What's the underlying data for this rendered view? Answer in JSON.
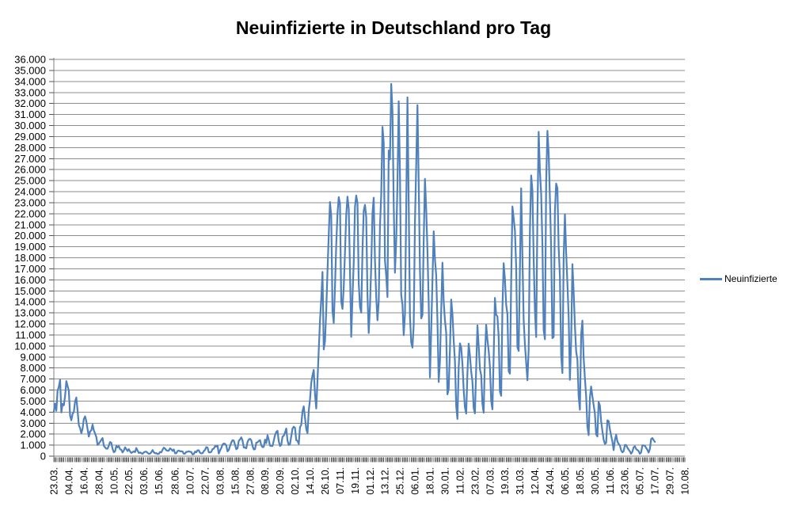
{
  "header": {
    "title": "Neuinfizierte in Deutschland pro Tag"
  },
  "legend": {
    "label": "Neuinfizierte",
    "marker_color": "#4F81BD"
  },
  "colors": {
    "series_blue": "#4F81BD",
    "gridline": "#8C8C8C",
    "axis": "#7F7F7F",
    "tick": "#555555",
    "text": "#000000",
    "background": "#FFFFFF"
  },
  "chart_data": {
    "type": "line",
    "title": "Neuinfizierte in Deutschland pro Tag",
    "grid": {
      "horizontal": true,
      "vertical": false
    },
    "legend_position": "right",
    "y_axis": {
      "min": 0,
      "max": 36000,
      "step": 1000,
      "tick_labels": [
        "0",
        "1.000",
        "2.000",
        "3.000",
        "4.000",
        "5.000",
        "6.000",
        "7.000",
        "8.000",
        "9.000",
        "10.000",
        "11.000",
        "12.000",
        "13.000",
        "14.000",
        "15.000",
        "16.000",
        "17.000",
        "18.000",
        "19.000",
        "20.000",
        "21.000",
        "22.000",
        "23.000",
        "24.000",
        "25.000",
        "26.000",
        "27.000",
        "28.000",
        "29.000",
        "30.000",
        "31.000",
        "32.000",
        "33.000",
        "34.000",
        "35.000",
        "36.000"
      ]
    },
    "x_axis": {
      "total_categories": 506,
      "tick_labels": [
        "23.03.",
        "04.04.",
        "16.04.",
        "28.04.",
        "10.05.",
        "22.05.",
        "03.06.",
        "15.06.",
        "28.06.",
        "10.07.",
        "22.07.",
        "03.08.",
        "15.08.",
        "27.08.",
        "08.09.",
        "20.09.",
        "02.10.",
        "14.10.",
        "26.10.",
        "07.11.",
        "19.11.",
        "01.12.",
        "13.12.",
        "25.12.",
        "06.01.",
        "18.01.",
        "30.01.",
        "11.02.",
        "23.02.",
        "07.03.",
        "19.03.",
        "31.03.",
        "12.04.",
        "24.04.",
        "06.05.",
        "18.05.",
        "30.05.",
        "11.06.",
        "23.06.",
        "05.07.",
        "17.07.",
        "29.07.",
        "10.08."
      ],
      "tick_indices": [
        0,
        12,
        24,
        36,
        48,
        60,
        72,
        84,
        97,
        109,
        121,
        133,
        145,
        157,
        169,
        181,
        193,
        205,
        217,
        229,
        241,
        253,
        265,
        277,
        289,
        301,
        313,
        325,
        337,
        349,
        361,
        373,
        385,
        397,
        409,
        421,
        433,
        445,
        457,
        469,
        481,
        493,
        505
      ]
    },
    "series": [
      {
        "name": "Neuinfizierte",
        "color": "#4F81BD",
        "values": [
          4062,
          4764,
          4118,
          5940,
          6294,
          6922,
          3965,
          4751,
          4615,
          5453,
          6813,
          6365,
          5936,
          3677,
          3252,
          3834,
          4003,
          4974,
          5323,
          4133,
          2821,
          2537,
          2082,
          2486,
          3380,
          3609,
          3148,
          2458,
          1775,
          2237,
          2352,
          2866,
          2337,
          2055,
          1737,
          1018,
          1144,
          1304,
          1478,
          1639,
          945,
          793,
          679,
          685,
          947,
          1284,
          1209,
          667,
          357,
          432,
          933,
          798,
          913,
          620,
          583,
          342,
          513,
          797,
          639,
          460,
          638,
          431,
          289,
          361,
          432,
          362,
          741,
          507,
          286,
          333,
          270,
          213,
          342,
          394,
          407,
          301,
          214,
          229,
          350,
          555,
          348,
          258,
          276,
          192,
          210,
          378,
          345,
          580,
          770,
          687,
          537,
          479,
          503,
          712,
          630,
          477,
          606,
          256,
          262,
          466,
          503,
          446,
          440,
          422,
          219,
          231,
          390,
          397,
          442,
          395,
          378,
          159,
          190,
          412,
          351,
          534,
          529,
          305,
          249,
          264,
          454,
          569,
          815,
          781,
          351,
          340,
          390,
          633,
          684,
          902,
          870,
          955,
          240,
          509,
          741,
          1045,
          1147,
          1122,
          966,
          436,
          561,
          919,
          1226,
          1445,
          1415,
          1034,
          625,
          713,
          1390,
          1510,
          1707,
          1427,
          782,
          785,
          711,
          1278,
          1507,
          1571,
          1446,
          924,
          610,
          633,
          1218,
          1256,
          1375,
          1453,
          988,
          814,
          839,
          1499,
          1176,
          1892,
          1484,
          948,
          920,
          927,
          1407,
          1901,
          2194,
          2297,
          1345,
          922,
          1021,
          1769,
          1850,
          2143,
          2507,
          1411,
          1011,
          1101,
          1798,
          2503,
          2673,
          2563,
          1449,
          1382,
          1104,
          2639,
          2828,
          4058,
          4516,
          3483,
          2467,
          2089,
          4122,
          5132,
          6638,
          7334,
          7830,
          5587,
          4325,
          6868,
          9595,
          12287,
          14242,
          16714,
          9685,
          10409,
          13217,
          16774,
          20081,
          23059,
          21790,
          13177,
          12097,
          15352,
          19214,
          21990,
          23506,
          22899,
          14017,
          13363,
          15332,
          18487,
          21866,
          23542,
          22461,
          16947,
          10824,
          14419,
          17561,
          22609,
          23648,
          22964,
          15741,
          13554,
          13021,
          18633,
          22268,
          22806,
          21695,
          14611,
          11169,
          13604,
          17270,
          22046,
          23449,
          17767,
          14455,
          12332,
          14054,
          20815,
          23679,
          29875,
          28438,
          17765,
          16362,
          14432,
          27728,
          26923,
          33777,
          31300,
          22771,
          16643,
          19528,
          24740,
          32195,
          25533,
          14620,
          13755,
          10976,
          12892,
          22459,
          32552,
          22924,
          12690,
          10315,
          9847,
          11897,
          21237,
          26391,
          31849,
          24694,
          16946,
          12497,
          12802,
          19600,
          25164,
          22368,
          18678,
          13882,
          7141,
          11369,
          15974,
          20398,
          17862,
          16417,
          12257,
          6729,
          8642,
          13202,
          17553,
          14022,
          12321,
          11192,
          5608,
          6114,
          9705,
          14211,
          12908,
          10485,
          8616,
          4535,
          3379,
          8072,
          10237,
          9860,
          8354,
          5986,
          4426,
          3856,
          7556,
          10207,
          9113,
          7676,
          6752,
          4369,
          3883,
          8007,
          11869,
          9997,
          7890,
          7342,
          4732,
          3943,
          9019,
          11912,
          10580,
          9557,
          8103,
          5011,
          4252,
          9146,
          14356,
          12834,
          12674,
          10790,
          5849,
          5480,
          13435,
          17504,
          16033,
          13733,
          12912,
          7709,
          7485,
          15813,
          22657,
          21573,
          20472,
          17176,
          9872,
          9549,
          17051,
          24300,
          18129,
          12340,
          10120,
          8497,
          6885,
          9677,
          20407,
          25464,
          24097,
          17855,
          13245,
          10810,
          21693,
          29426,
          25831,
          23804,
          19185,
          11437,
          10609,
          24884,
          29518,
          27543,
          23392,
          18773,
          10705,
          10826,
          22231,
          24736,
          24329,
          18935,
          16290,
          9160,
          7534,
          18034,
          21953,
          18485,
          15685,
          12656,
          6922,
          10430,
          17419,
          14909,
          11869,
          9500,
          8769,
          5412,
          4209,
          11040,
          12298,
          8921,
          7082,
          5435,
          2682,
          1911,
          5306,
          6313,
          5426,
          4640,
          3852,
          1978,
          1785,
          4917,
          4580,
          3165,
          2294,
          1489,
          1117,
          1204,
          3254,
          3187,
          2440,
          1860,
          1325,
          549,
          1455,
          1944,
          1330,
          1108,
          958,
          538,
          346,
          455,
          1016,
          1008,
          774,
          592,
          440,
          219,
          404,
          808,
          892,
          649,
          559,
          466,
          212,
          342,
          985,
          970,
          949,
          745,
          574,
          324,
          646,
          1548,
          1642,
          1456,
          1292
        ]
      }
    ]
  }
}
